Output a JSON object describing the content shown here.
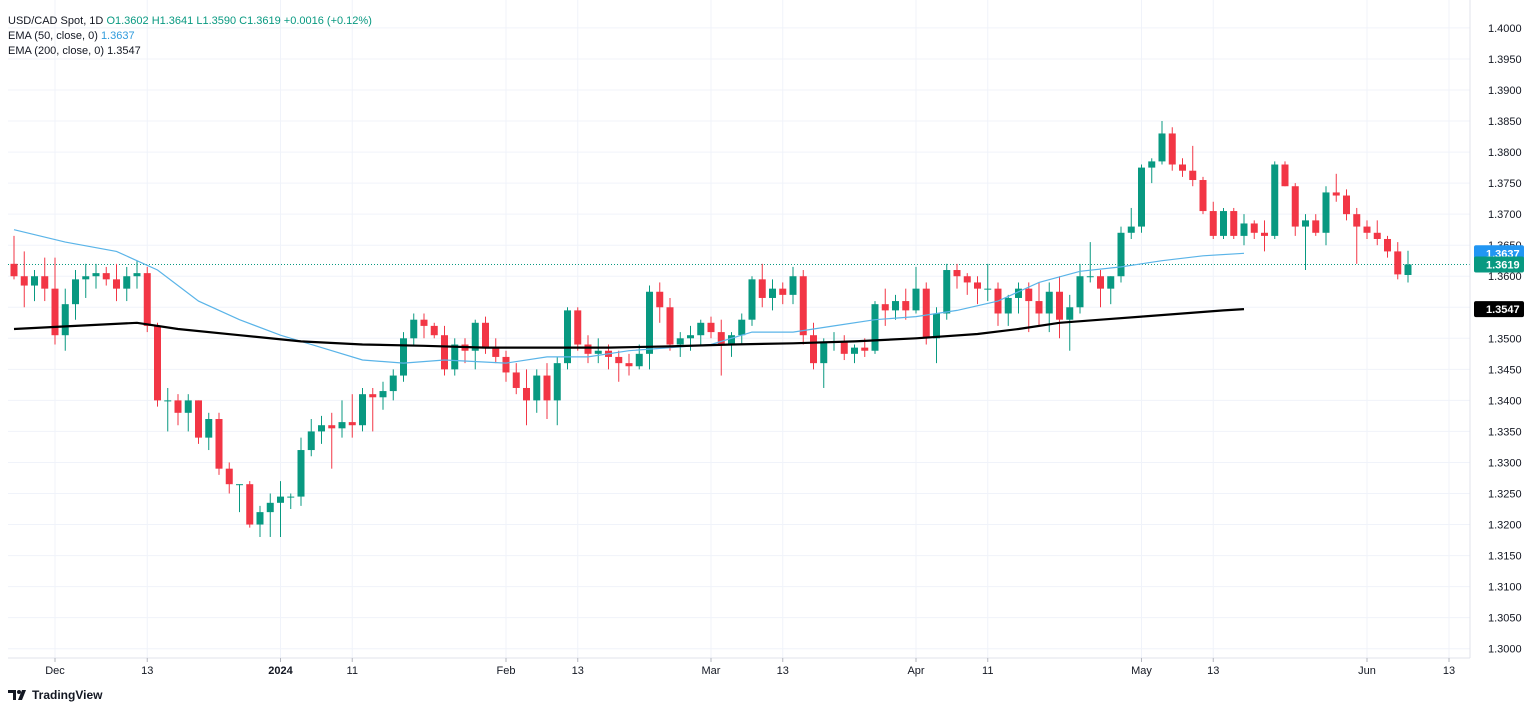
{
  "legend": {
    "symbol": "USD/CAD Spot, 1D",
    "ohlc": "O1.3602 H1.3641 L1.3590 C1.3619 +0.0016 (+0.12%)",
    "ema50_label": "EMA (50, close, 0)",
    "ema50_value": "1.3637",
    "ema200_label": "EMA (200, close, 0)",
    "ema200_value": "1.3547"
  },
  "branding": {
    "name": "TradingView",
    "icon": "tradingview-logo-icon"
  },
  "colors": {
    "up": "#089981",
    "down": "#f23645",
    "ema50": "#5ab4e8",
    "ema200": "#000000",
    "grid": "#f0f3fa",
    "price_line": "#089981"
  },
  "chart_data": {
    "type": "candlestick",
    "title": "USD/CAD Spot, 1D",
    "ylim": [
      1.2985,
      1.4045
    ],
    "y_ticks": [
      "1.4000",
      "1.3950",
      "1.3900",
      "1.3850",
      "1.3800",
      "1.3750",
      "1.3700",
      "1.3650",
      "1.3600",
      "1.3550",
      "1.3500",
      "1.3450",
      "1.3400",
      "1.3350",
      "1.3300",
      "1.3250",
      "1.3200",
      "1.3150",
      "1.3100",
      "1.3050",
      "1.3000"
    ],
    "x_ticks": [
      {
        "label": "Dec",
        "bar": 4,
        "bold": false
      },
      {
        "label": "13",
        "bar": 13,
        "bold": false
      },
      {
        "label": "2024",
        "bar": 26,
        "bold": true
      },
      {
        "label": "11",
        "bar": 33,
        "bold": false
      },
      {
        "label": "Feb",
        "bar": 48,
        "bold": false
      },
      {
        "label": "13",
        "bar": 55,
        "bold": false
      },
      {
        "label": "Mar",
        "bar": 68,
        "bold": false
      },
      {
        "label": "13",
        "bar": 75,
        "bold": false
      },
      {
        "label": "Apr",
        "bar": 88,
        "bold": false
      },
      {
        "label": "11",
        "bar": 95,
        "bold": false
      },
      {
        "label": "May",
        "bar": 110,
        "bold": false
      },
      {
        "label": "13",
        "bar": 117,
        "bold": false
      },
      {
        "label": "Jun",
        "bar": 132,
        "bold": false
      },
      {
        "label": "13",
        "bar": 140,
        "bold": false
      }
    ],
    "last_price": "1.3619",
    "series": [
      {
        "name": "USD/CAD",
        "ohlc": [
          [
            1.362,
            1.3665,
            1.3595,
            1.36
          ],
          [
            1.36,
            1.364,
            1.355,
            1.3585
          ],
          [
            1.3585,
            1.361,
            1.356,
            1.36
          ],
          [
            1.36,
            1.363,
            1.356,
            1.358
          ],
          [
            1.358,
            1.363,
            1.349,
            1.3505
          ],
          [
            1.3505,
            1.358,
            1.348,
            1.3555
          ],
          [
            1.3555,
            1.361,
            1.353,
            1.3595
          ],
          [
            1.3595,
            1.362,
            1.3565,
            1.36
          ],
          [
            1.36,
            1.362,
            1.358,
            1.3605
          ],
          [
            1.3605,
            1.3615,
            1.3585,
            1.3595
          ],
          [
            1.3595,
            1.362,
            1.356,
            1.358
          ],
          [
            1.358,
            1.3615,
            1.356,
            1.36
          ],
          [
            1.36,
            1.3625,
            1.358,
            1.3605
          ],
          [
            1.3605,
            1.3615,
            1.351,
            1.352
          ],
          [
            1.352,
            1.3525,
            1.339,
            1.34
          ],
          [
            1.34,
            1.342,
            1.335,
            1.34
          ],
          [
            1.34,
            1.341,
            1.336,
            1.338
          ],
          [
            1.338,
            1.341,
            1.335,
            1.34
          ],
          [
            1.34,
            1.34,
            1.333,
            1.334
          ],
          [
            1.334,
            1.338,
            1.332,
            1.337
          ],
          [
            1.337,
            1.338,
            1.328,
            1.329
          ],
          [
            1.329,
            1.33,
            1.325,
            1.3265
          ],
          [
            1.3265,
            1.3265,
            1.322,
            1.3265
          ],
          [
            1.3265,
            1.327,
            1.3195,
            1.32
          ],
          [
            1.32,
            1.323,
            1.318,
            1.322
          ],
          [
            1.322,
            1.325,
            1.318,
            1.3235
          ],
          [
            1.3235,
            1.327,
            1.318,
            1.3245
          ],
          [
            1.3245,
            1.325,
            1.3225,
            1.3245
          ],
          [
            1.3245,
            1.334,
            1.323,
            1.332
          ],
          [
            1.332,
            1.337,
            1.331,
            1.335
          ],
          [
            1.335,
            1.3375,
            1.333,
            1.336
          ],
          [
            1.336,
            1.338,
            1.329,
            1.3355
          ],
          [
            1.3355,
            1.34,
            1.334,
            1.3365
          ],
          [
            1.3365,
            1.341,
            1.334,
            1.336
          ],
          [
            1.336,
            1.342,
            1.335,
            1.341
          ],
          [
            1.341,
            1.342,
            1.335,
            1.3405
          ],
          [
            1.3405,
            1.343,
            1.3385,
            1.3415
          ],
          [
            1.3415,
            1.345,
            1.34,
            1.344
          ],
          [
            1.344,
            1.351,
            1.343,
            1.35
          ],
          [
            1.35,
            1.354,
            1.349,
            1.353
          ],
          [
            1.353,
            1.354,
            1.35,
            1.352
          ],
          [
            1.352,
            1.3525,
            1.35,
            1.3505
          ],
          [
            1.3505,
            1.352,
            1.344,
            1.345
          ],
          [
            1.345,
            1.35,
            1.344,
            1.349
          ],
          [
            1.349,
            1.35,
            1.346,
            1.348
          ],
          [
            1.348,
            1.353,
            1.345,
            1.3525
          ],
          [
            1.3525,
            1.3535,
            1.3475,
            1.3485
          ],
          [
            1.3485,
            1.35,
            1.346,
            1.347
          ],
          [
            1.347,
            1.348,
            1.343,
            1.3445
          ],
          [
            1.3445,
            1.346,
            1.341,
            1.342
          ],
          [
            1.342,
            1.345,
            1.336,
            1.34
          ],
          [
            1.34,
            1.345,
            1.338,
            1.344
          ],
          [
            1.344,
            1.346,
            1.337,
            1.34
          ],
          [
            1.34,
            1.347,
            1.336,
            1.346
          ],
          [
            1.346,
            1.355,
            1.345,
            1.3545
          ],
          [
            1.3545,
            1.355,
            1.348,
            1.349
          ],
          [
            1.349,
            1.3505,
            1.346,
            1.3475
          ],
          [
            1.3475,
            1.35,
            1.346,
            1.348
          ],
          [
            1.348,
            1.349,
            1.345,
            1.347
          ],
          [
            1.347,
            1.348,
            1.343,
            1.346
          ],
          [
            1.346,
            1.3475,
            1.344,
            1.3455
          ],
          [
            1.3455,
            1.349,
            1.345,
            1.3475
          ],
          [
            1.3475,
            1.3585,
            1.345,
            1.3575
          ],
          [
            1.3575,
            1.359,
            1.3525,
            1.355
          ],
          [
            1.355,
            1.3565,
            1.348,
            1.349
          ],
          [
            1.349,
            1.351,
            1.347,
            1.35
          ],
          [
            1.35,
            1.352,
            1.348,
            1.3505
          ],
          [
            1.3505,
            1.353,
            1.349,
            1.3525
          ],
          [
            1.3525,
            1.3535,
            1.35,
            1.351
          ],
          [
            1.351,
            1.353,
            1.344,
            1.349
          ],
          [
            1.349,
            1.351,
            1.347,
            1.3505
          ],
          [
            1.3505,
            1.354,
            1.349,
            1.353
          ],
          [
            1.353,
            1.36,
            1.352,
            1.3595
          ],
          [
            1.3595,
            1.362,
            1.355,
            1.3565
          ],
          [
            1.3565,
            1.3595,
            1.3545,
            1.358
          ],
          [
            1.358,
            1.359,
            1.3555,
            1.357
          ],
          [
            1.357,
            1.3615,
            1.3555,
            1.36
          ],
          [
            1.36,
            1.361,
            1.349,
            1.3505
          ],
          [
            1.3505,
            1.3525,
            1.345,
            1.346
          ],
          [
            1.346,
            1.35,
            1.342,
            1.3495
          ],
          [
            1.3495,
            1.351,
            1.348,
            1.3495
          ],
          [
            1.3495,
            1.3505,
            1.3465,
            1.3475
          ],
          [
            1.3475,
            1.349,
            1.346,
            1.3485
          ],
          [
            1.3485,
            1.35,
            1.347,
            1.348
          ],
          [
            1.348,
            1.356,
            1.3475,
            1.3555
          ],
          [
            1.3555,
            1.358,
            1.352,
            1.3545
          ],
          [
            1.3545,
            1.357,
            1.353,
            1.356
          ],
          [
            1.356,
            1.358,
            1.353,
            1.3545
          ],
          [
            1.3545,
            1.3615,
            1.354,
            1.358
          ],
          [
            1.358,
            1.359,
            1.349,
            1.35
          ],
          [
            1.35,
            1.355,
            1.346,
            1.354
          ],
          [
            1.354,
            1.362,
            1.353,
            1.361
          ],
          [
            1.361,
            1.362,
            1.358,
            1.36
          ],
          [
            1.36,
            1.3605,
            1.357,
            1.359
          ],
          [
            1.359,
            1.36,
            1.3555,
            1.358
          ],
          [
            1.358,
            1.362,
            1.356,
            1.358
          ],
          [
            1.358,
            1.359,
            1.352,
            1.354
          ],
          [
            1.354,
            1.357,
            1.352,
            1.3565
          ],
          [
            1.3565,
            1.359,
            1.354,
            1.358
          ],
          [
            1.358,
            1.359,
            1.351,
            1.356
          ],
          [
            1.356,
            1.359,
            1.352,
            1.354
          ],
          [
            1.354,
            1.359,
            1.351,
            1.3575
          ],
          [
            1.3575,
            1.36,
            1.35,
            1.353
          ],
          [
            1.353,
            1.357,
            1.348,
            1.355
          ],
          [
            1.355,
            1.362,
            1.354,
            1.36
          ],
          [
            1.36,
            1.3655,
            1.359,
            1.36
          ],
          [
            1.36,
            1.361,
            1.355,
            1.358
          ],
          [
            1.358,
            1.36,
            1.3555,
            1.36
          ],
          [
            1.36,
            1.368,
            1.359,
            1.367
          ],
          [
            1.367,
            1.371,
            1.366,
            1.368
          ],
          [
            1.368,
            1.378,
            1.367,
            1.3775
          ],
          [
            1.3775,
            1.379,
            1.375,
            1.3785
          ],
          [
            1.3785,
            1.385,
            1.378,
            1.383
          ],
          [
            1.383,
            1.384,
            1.377,
            1.378
          ],
          [
            1.378,
            1.379,
            1.376,
            1.377
          ],
          [
            1.377,
            1.381,
            1.3745,
            1.3755
          ],
          [
            1.3755,
            1.376,
            1.37,
            1.3705
          ],
          [
            1.3705,
            1.372,
            1.366,
            1.3665
          ],
          [
            1.3665,
            1.371,
            1.366,
            1.3705
          ],
          [
            1.3705,
            1.371,
            1.366,
            1.3665
          ],
          [
            1.3665,
            1.37,
            1.365,
            1.3685
          ],
          [
            1.3685,
            1.369,
            1.366,
            1.367
          ],
          [
            1.367,
            1.369,
            1.364,
            1.3665
          ],
          [
            1.3665,
            1.3785,
            1.366,
            1.378
          ],
          [
            1.378,
            1.3785,
            1.3745,
            1.3745
          ],
          [
            1.3745,
            1.375,
            1.3665,
            1.368
          ],
          [
            1.368,
            1.37,
            1.361,
            1.369
          ],
          [
            1.369,
            1.37,
            1.3665,
            1.367
          ],
          [
            1.367,
            1.3745,
            1.365,
            1.3735
          ],
          [
            1.3735,
            1.3765,
            1.372,
            1.373
          ],
          [
            1.373,
            1.374,
            1.369,
            1.37
          ],
          [
            1.37,
            1.371,
            1.362,
            1.368
          ],
          [
            1.368,
            1.369,
            1.366,
            1.367
          ],
          [
            1.367,
            1.369,
            1.365,
            1.366
          ],
          [
            1.366,
            1.3665,
            1.363,
            1.364
          ],
          [
            1.364,
            1.3655,
            1.3595,
            1.3603
          ],
          [
            1.3602,
            1.3641,
            1.359,
            1.3619
          ]
        ]
      },
      {
        "name": "EMA (50, close, 0)",
        "keypoints": [
          [
            0,
            1.3675
          ],
          [
            5,
            1.3655
          ],
          [
            10,
            1.364
          ],
          [
            14,
            1.361
          ],
          [
            18,
            1.356
          ],
          [
            22,
            1.353
          ],
          [
            26,
            1.3505
          ],
          [
            30,
            1.3485
          ],
          [
            34,
            1.3465
          ],
          [
            38,
            1.346
          ],
          [
            42,
            1.3465
          ],
          [
            48,
            1.346
          ],
          [
            52,
            1.347
          ],
          [
            56,
            1.347
          ],
          [
            60,
            1.348
          ],
          [
            64,
            1.3485
          ],
          [
            68,
            1.349
          ],
          [
            72,
            1.351
          ],
          [
            76,
            1.351
          ],
          [
            80,
            1.352
          ],
          [
            84,
            1.353
          ],
          [
            88,
            1.3535
          ],
          [
            92,
            1.3545
          ],
          [
            96,
            1.356
          ],
          [
            100,
            1.359
          ],
          [
            104,
            1.3608
          ],
          [
            108,
            1.3615
          ],
          [
            112,
            1.3625
          ],
          [
            116,
            1.3633
          ],
          [
            120,
            1.3637
          ]
        ],
        "last": "1.3637"
      },
      {
        "name": "EMA (200, close, 0)",
        "keypoints": [
          [
            0,
            1.3515
          ],
          [
            6,
            1.352
          ],
          [
            12,
            1.3525
          ],
          [
            16,
            1.3515
          ],
          [
            22,
            1.3505
          ],
          [
            28,
            1.3495
          ],
          [
            34,
            1.349
          ],
          [
            40,
            1.3488
          ],
          [
            46,
            1.3485
          ],
          [
            52,
            1.3485
          ],
          [
            58,
            1.3485
          ],
          [
            64,
            1.3487
          ],
          [
            70,
            1.349
          ],
          [
            76,
            1.3492
          ],
          [
            82,
            1.3495
          ],
          [
            88,
            1.35
          ],
          [
            94,
            1.3507
          ],
          [
            98,
            1.3515
          ],
          [
            102,
            1.3525
          ],
          [
            106,
            1.353
          ],
          [
            110,
            1.3535
          ],
          [
            114,
            1.354
          ],
          [
            118,
            1.3545
          ],
          [
            120,
            1.3547
          ]
        ],
        "last": "1.3547"
      }
    ]
  }
}
